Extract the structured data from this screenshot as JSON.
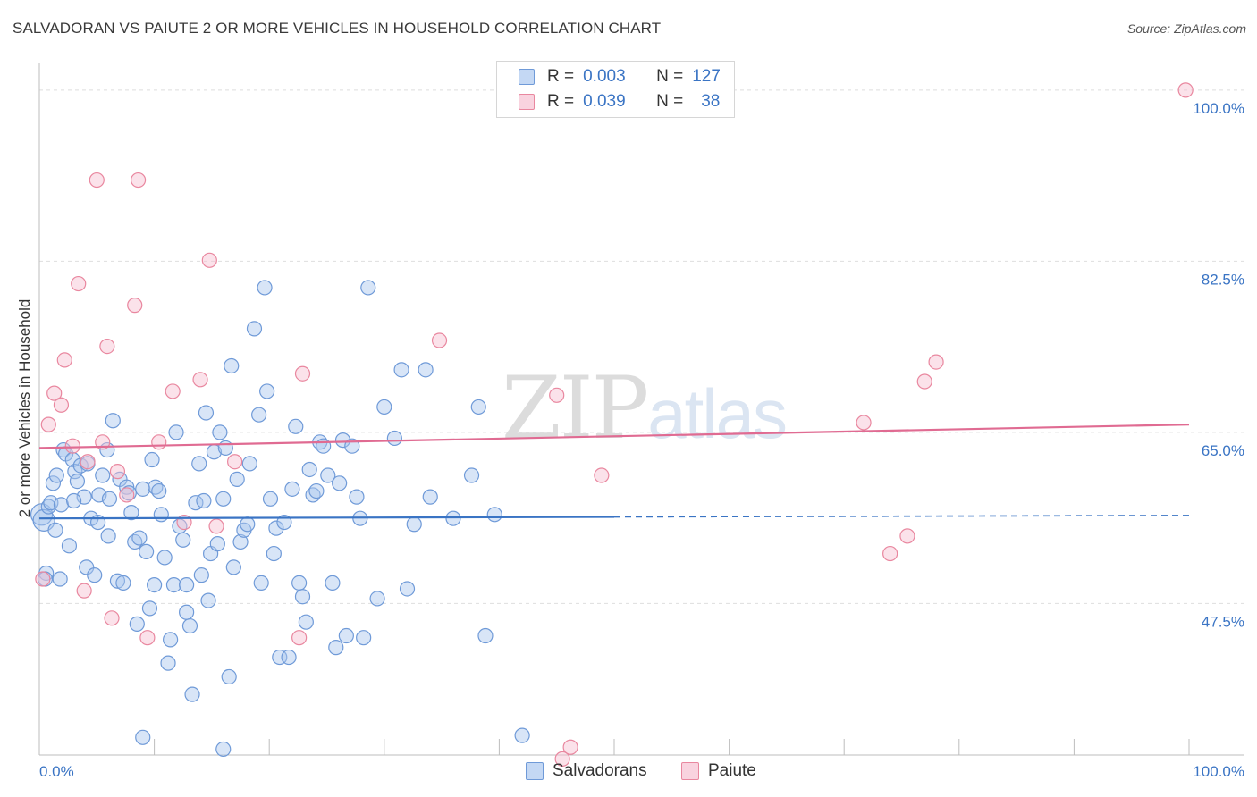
{
  "title": "SALVADORAN VS PAIUTE 2 OR MORE VEHICLES IN HOUSEHOLD CORRELATION CHART",
  "source": "Source: ZipAtlas.com",
  "watermark": "ZIPatlas",
  "legend": {
    "r_label": "R =",
    "n_label": "N =",
    "rows": [
      {
        "name": "Salvadorans",
        "r": "0.003",
        "n": "127",
        "color": "#a9c6ee",
        "stroke": "#6f9ad8"
      },
      {
        "name": "Paiute",
        "r": "0.039",
        "n": "38",
        "color": "#f6bfd0",
        "stroke": "#e9879f"
      }
    ]
  },
  "chart_data": {
    "type": "scatter",
    "title": "SALVADORAN VS PAIUTE 2 OR MORE VEHICLES IN HOUSEHOLD CORRELATION CHART",
    "xlabel": "",
    "ylabel": "2 or more Vehicles in Household",
    "xlim": [
      0,
      100
    ],
    "ylim": [
      32,
      102
    ],
    "x_tick_labels": [
      "0.0%",
      "100.0%"
    ],
    "y_ticks": [
      47.5,
      65.0,
      82.5,
      100.0
    ],
    "y_tick_labels": [
      "47.5%",
      "65.0%",
      "82.5%",
      "100.0%"
    ],
    "grid": true,
    "series": [
      {
        "name": "Salvadorans",
        "color": "#a9c6ee",
        "stroke": "#6f9ad8",
        "trend": {
          "x0": 0,
          "y0": 56.2,
          "x1": 100,
          "y1": 56.5,
          "solid_to": 50,
          "color": "#3a74c4"
        },
        "points": [
          [
            0.2,
            56.6
          ],
          [
            0.4,
            56.0
          ],
          [
            0.6,
            50.6
          ],
          [
            0.8,
            57.4
          ],
          [
            1.0,
            57.8
          ],
          [
            1.2,
            59.8
          ],
          [
            1.5,
            60.6
          ],
          [
            1.8,
            50.0
          ],
          [
            1.9,
            57.6
          ],
          [
            2.1,
            63.2
          ],
          [
            2.3,
            62.8
          ],
          [
            2.6,
            53.4
          ],
          [
            2.9,
            62.2
          ],
          [
            3.1,
            61.0
          ],
          [
            3.3,
            60.0
          ],
          [
            3.6,
            61.6
          ],
          [
            3.9,
            58.4
          ],
          [
            4.1,
            51.2
          ],
          [
            4.2,
            61.8
          ],
          [
            4.5,
            56.2
          ],
          [
            4.8,
            50.4
          ],
          [
            5.1,
            55.8
          ],
          [
            5.2,
            58.6
          ],
          [
            5.5,
            60.6
          ],
          [
            5.9,
            63.2
          ],
          [
            6.1,
            58.2
          ],
          [
            6.4,
            66.2
          ],
          [
            6.8,
            49.8
          ],
          [
            7.0,
            60.2
          ],
          [
            7.3,
            49.6
          ],
          [
            7.6,
            59.4
          ],
          [
            7.8,
            58.8
          ],
          [
            8.0,
            56.8
          ],
          [
            8.3,
            53.8
          ],
          [
            8.5,
            45.4
          ],
          [
            8.7,
            54.2
          ],
          [
            9.0,
            59.2
          ],
          [
            9.3,
            52.8
          ],
          [
            9.6,
            47.0
          ],
          [
            9.8,
            62.2
          ],
          [
            10.1,
            59.4
          ],
          [
            10.4,
            59.0
          ],
          [
            10.6,
            56.6
          ],
          [
            10.9,
            52.2
          ],
          [
            11.2,
            41.4
          ],
          [
            11.4,
            43.8
          ],
          [
            11.7,
            49.4
          ],
          [
            11.9,
            65.0
          ],
          [
            12.2,
            55.4
          ],
          [
            12.5,
            54.0
          ],
          [
            12.8,
            46.6
          ],
          [
            13.1,
            45.2
          ],
          [
            13.3,
            38.2
          ],
          [
            13.6,
            57.8
          ],
          [
            13.9,
            61.8
          ],
          [
            14.1,
            50.4
          ],
          [
            14.3,
            58.0
          ],
          [
            14.5,
            67.0
          ],
          [
            14.7,
            47.8
          ],
          [
            14.9,
            52.6
          ],
          [
            15.2,
            63.0
          ],
          [
            15.5,
            53.6
          ],
          [
            15.7,
            65.0
          ],
          [
            16.0,
            58.2
          ],
          [
            16.2,
            63.4
          ],
          [
            16.5,
            40.0
          ],
          [
            16.7,
            71.8
          ],
          [
            16.9,
            51.2
          ],
          [
            17.2,
            60.2
          ],
          [
            17.5,
            53.8
          ],
          [
            17.8,
            55.0
          ],
          [
            18.1,
            55.6
          ],
          [
            18.3,
            61.8
          ],
          [
            18.7,
            75.6
          ],
          [
            19.1,
            66.8
          ],
          [
            19.3,
            49.6
          ],
          [
            19.6,
            79.8
          ],
          [
            19.8,
            69.2
          ],
          [
            20.1,
            58.2
          ],
          [
            20.4,
            52.6
          ],
          [
            20.6,
            55.2
          ],
          [
            20.9,
            42.0
          ],
          [
            21.3,
            55.8
          ],
          [
            21.7,
            42.0
          ],
          [
            22.0,
            59.2
          ],
          [
            22.3,
            65.6
          ],
          [
            22.6,
            49.6
          ],
          [
            22.9,
            48.2
          ],
          [
            23.2,
            45.6
          ],
          [
            23.5,
            61.2
          ],
          [
            23.8,
            58.6
          ],
          [
            24.1,
            59.0
          ],
          [
            24.4,
            64.0
          ],
          [
            24.7,
            63.6
          ],
          [
            25.1,
            60.6
          ],
          [
            25.5,
            49.6
          ],
          [
            25.8,
            43.0
          ],
          [
            26.1,
            59.8
          ],
          [
            26.4,
            64.2
          ],
          [
            26.7,
            44.2
          ],
          [
            27.2,
            63.6
          ],
          [
            27.6,
            58.4
          ],
          [
            27.9,
            56.2
          ],
          [
            28.2,
            44.0
          ],
          [
            28.6,
            79.8
          ],
          [
            29.4,
            48.0
          ],
          [
            30.0,
            67.6
          ],
          [
            30.9,
            64.4
          ],
          [
            31.5,
            71.4
          ],
          [
            32.0,
            49.0
          ],
          [
            32.6,
            55.6
          ],
          [
            33.6,
            71.4
          ],
          [
            34.0,
            58.4
          ],
          [
            36.0,
            56.2
          ],
          [
            37.6,
            60.6
          ],
          [
            38.2,
            67.6
          ],
          [
            38.8,
            44.2
          ],
          [
            39.6,
            56.6
          ],
          [
            42.0,
            34.0
          ],
          [
            9.0,
            33.8
          ],
          [
            16.0,
            32.6
          ],
          [
            0.5,
            50.0
          ],
          [
            1.4,
            55.0
          ],
          [
            3.0,
            58.0
          ],
          [
            6.0,
            54.4
          ],
          [
            10.0,
            49.4
          ],
          [
            12.8,
            49.4
          ]
        ]
      },
      {
        "name": "Paiute",
        "color": "#f6bfd0",
        "stroke": "#e9879f",
        "trend": {
          "x0": 0,
          "y0": 63.4,
          "x1": 100,
          "y1": 65.8,
          "solid_to": 100,
          "color": "#e06b92"
        },
        "points": [
          [
            0.3,
            50.0
          ],
          [
            0.8,
            65.8
          ],
          [
            1.3,
            69.0
          ],
          [
            1.9,
            67.8
          ],
          [
            2.2,
            72.4
          ],
          [
            2.9,
            63.6
          ],
          [
            3.4,
            80.2
          ],
          [
            3.9,
            48.8
          ],
          [
            4.2,
            62.0
          ],
          [
            5.0,
            90.8
          ],
          [
            5.5,
            64.0
          ],
          [
            5.9,
            73.8
          ],
          [
            6.3,
            46.0
          ],
          [
            6.8,
            61.0
          ],
          [
            7.6,
            58.6
          ],
          [
            8.3,
            78.0
          ],
          [
            8.6,
            90.8
          ],
          [
            9.4,
            44.0
          ],
          [
            10.4,
            64.0
          ],
          [
            11.6,
            69.2
          ],
          [
            12.6,
            55.8
          ],
          [
            14.0,
            70.4
          ],
          [
            14.8,
            82.6
          ],
          [
            15.4,
            55.4
          ],
          [
            17.0,
            62.0
          ],
          [
            22.6,
            44.0
          ],
          [
            22.9,
            71.0
          ],
          [
            34.8,
            74.4
          ],
          [
            45.0,
            68.8
          ],
          [
            45.5,
            31.6
          ],
          [
            46.2,
            32.8
          ],
          [
            48.9,
            60.6
          ],
          [
            71.7,
            66.0
          ],
          [
            74.0,
            52.6
          ],
          [
            75.5,
            54.4
          ],
          [
            77.0,
            70.2
          ],
          [
            78.0,
            72.2
          ],
          [
            99.7,
            100.0
          ]
        ]
      }
    ]
  }
}
